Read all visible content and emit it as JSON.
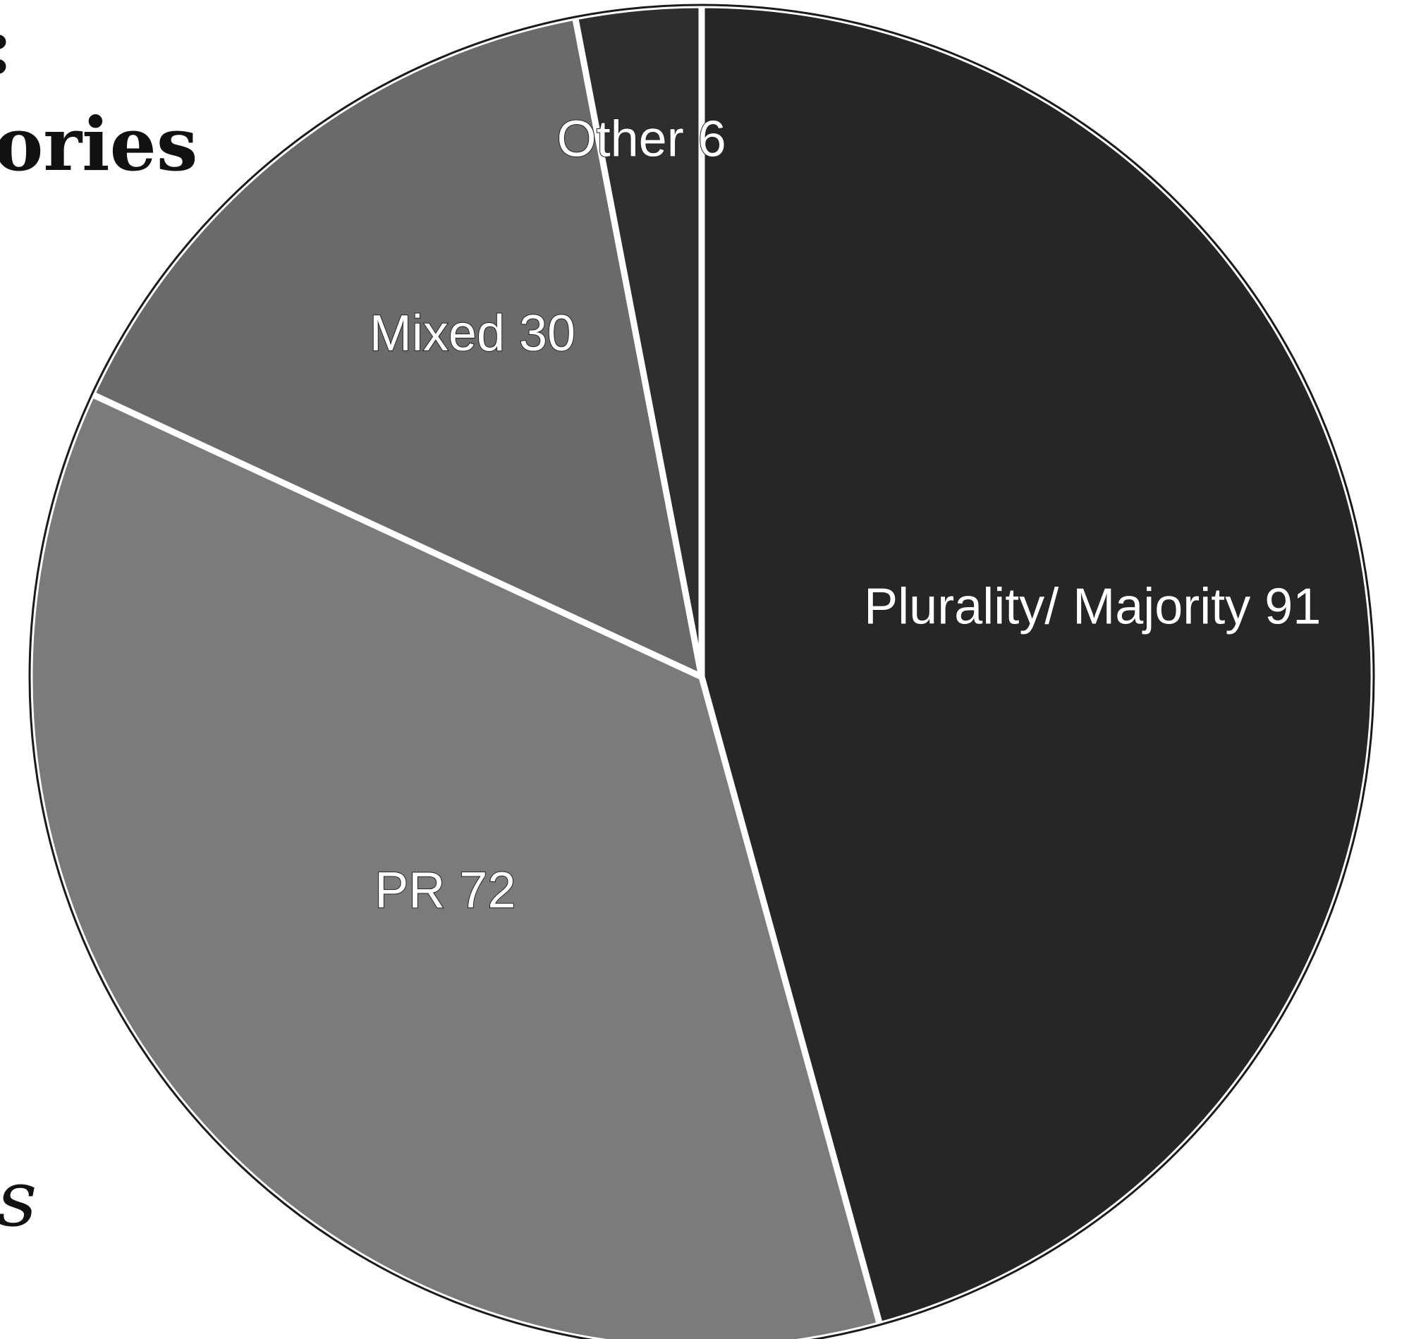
{
  "page_fragments": {
    "colon": ":",
    "ories": "ories",
    "s": "s"
  },
  "chart_data": {
    "type": "pie",
    "title": "",
    "start_angle_deg": 0,
    "direction": "clockwise",
    "slices": [
      {
        "label": "Plurality/ Majority 91",
        "name": "Plurality/ Majority",
        "value": 91,
        "color": "#262626"
      },
      {
        "label": "PR 72",
        "name": "PR",
        "value": 72,
        "color": "#7b7b7b"
      },
      {
        "label": "Mixed 30",
        "name": "Mixed",
        "value": 30,
        "color": "#6a6a6a"
      },
      {
        "label": "Other 6",
        "name": "Other",
        "value": 6,
        "color": "#2e2e2e"
      }
    ],
    "legend": "none",
    "separator_color": "#ffffff"
  }
}
